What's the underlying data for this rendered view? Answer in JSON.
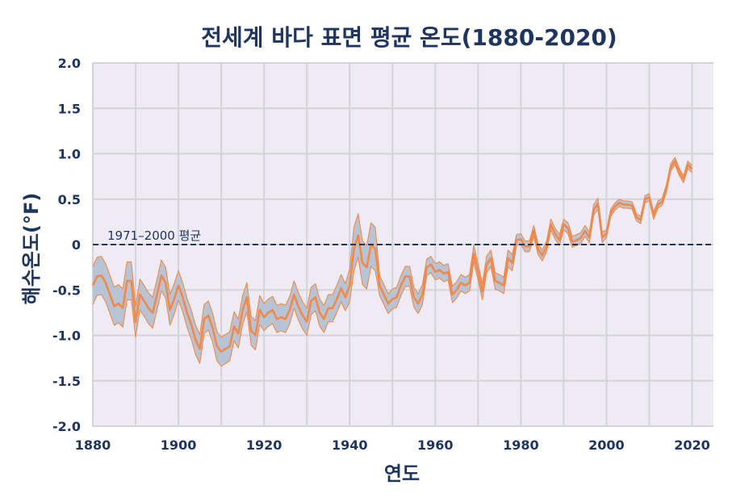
{
  "chart_data": {
    "type": "line",
    "title": "전세계 바다 표면 평균 온도(1880-2020)",
    "xlabel": "연도",
    "ylabel": "해수온도(°F)",
    "xlim": [
      1880,
      2025
    ],
    "ylim": [
      -2.0,
      2.0
    ],
    "grid": true,
    "xticks": [
      {
        "value": 1880,
        "label": "1880"
      },
      {
        "value": 1900,
        "label": "1900"
      },
      {
        "value": 1920,
        "label": "1920"
      },
      {
        "value": 1940,
        "label": "1940"
      },
      {
        "value": 1960,
        "label": "1960"
      },
      {
        "value": 1980,
        "label": "1980"
      },
      {
        "value": 2000,
        "label": "2000"
      },
      {
        "value": 2020,
        "label": "2020"
      }
    ],
    "yticks": [
      {
        "value": 2.0,
        "label": "2.0"
      },
      {
        "value": 1.5,
        "label": "1.5"
      },
      {
        "value": 1.0,
        "label": "1.0"
      },
      {
        "value": 0.5,
        "label": "0.5"
      },
      {
        "value": 0,
        "label": "0"
      },
      {
        "value": -0.5,
        "label": "-0.5"
      },
      {
        "value": -1.0,
        "label": "-1.0"
      },
      {
        "value": -1.5,
        "label": "-1.5"
      },
      {
        "value": -2.0,
        "label": "-2.0"
      }
    ],
    "reference_line": {
      "value": 0,
      "label": "1971–2000 평균"
    },
    "colors": {
      "text": "#1E3560",
      "plot_background": "#EEEBF4",
      "grid": "#D3D3D8",
      "band": "#B8C3D4",
      "line": "#EF8A4C",
      "reference_line": "#1E3560"
    },
    "x": [
      1880,
      1881,
      1882,
      1883,
      1884,
      1885,
      1886,
      1887,
      1888,
      1889,
      1890,
      1891,
      1892,
      1893,
      1894,
      1895,
      1896,
      1897,
      1898,
      1899,
      1900,
      1901,
      1902,
      1903,
      1904,
      1905,
      1906,
      1907,
      1908,
      1909,
      1910,
      1911,
      1912,
      1913,
      1914,
      1915,
      1916,
      1917,
      1918,
      1919,
      1920,
      1921,
      1922,
      1923,
      1924,
      1925,
      1926,
      1927,
      1928,
      1929,
      1930,
      1931,
      1932,
      1933,
      1934,
      1935,
      1936,
      1937,
      1938,
      1939,
      1940,
      1941,
      1942,
      1943,
      1944,
      1945,
      1946,
      1947,
      1948,
      1949,
      1950,
      1951,
      1952,
      1953,
      1954,
      1955,
      1956,
      1957,
      1958,
      1959,
      1960,
      1961,
      1962,
      1963,
      1964,
      1965,
      1966,
      1967,
      1968,
      1969,
      1970,
      1971,
      1972,
      1973,
      1974,
      1975,
      1976,
      1977,
      1978,
      1979,
      1980,
      1981,
      1982,
      1983,
      1984,
      1985,
      1986,
      1987,
      1988,
      1989,
      1990,
      1991,
      1992,
      1993,
      1994,
      1995,
      1996,
      1997,
      1998,
      1999,
      2000,
      2001,
      2002,
      2003,
      2004,
      2005,
      2006,
      2007,
      2008,
      2009,
      2010,
      2011,
      2012,
      2013,
      2014,
      2015,
      2016,
      2017,
      2018,
      2019,
      2020
    ],
    "series": [
      {
        "values": [
          -0.45,
          -0.35,
          -0.34,
          -0.42,
          -0.55,
          -0.68,
          -0.65,
          -0.7,
          -0.4,
          -0.4,
          -0.85,
          -0.55,
          -0.62,
          -0.7,
          -0.75,
          -0.55,
          -0.34,
          -0.42,
          -0.72,
          -0.6,
          -0.45,
          -0.58,
          -0.75,
          -0.88,
          -1.05,
          -1.15,
          -0.82,
          -0.78,
          -0.92,
          -1.12,
          -1.18,
          -1.15,
          -1.12,
          -0.9,
          -0.98,
          -0.72,
          -0.58,
          -0.95,
          -1.0,
          -0.72,
          -0.8,
          -0.75,
          -0.72,
          -0.82,
          -0.8,
          -0.82,
          -0.72,
          -0.55,
          -0.68,
          -0.78,
          -0.85,
          -0.62,
          -0.58,
          -0.75,
          -0.82,
          -0.7,
          -0.7,
          -0.6,
          -0.48,
          -0.58,
          -0.45,
          -0.05,
          0.1,
          -0.2,
          -0.25,
          0.0,
          -0.05,
          -0.45,
          -0.55,
          -0.65,
          -0.6,
          -0.58,
          -0.45,
          -0.35,
          -0.35,
          -0.58,
          -0.65,
          -0.55,
          -0.25,
          -0.22,
          -0.3,
          -0.28,
          -0.32,
          -0.3,
          -0.55,
          -0.5,
          -0.42,
          -0.45,
          -0.42,
          -0.1,
          -0.3,
          -0.52,
          -0.22,
          -0.15,
          -0.4,
          -0.42,
          -0.45,
          -0.15,
          -0.2,
          0.05,
          0.06,
          -0.02,
          -0.02,
          0.15,
          -0.05,
          -0.12,
          -0.02,
          0.22,
          0.12,
          0.05,
          0.22,
          0.18,
          0.03,
          0.05,
          0.07,
          0.15,
          0.08,
          0.38,
          0.45,
          0.08,
          0.12,
          0.35,
          0.42,
          0.46,
          0.44,
          0.44,
          0.43,
          0.3,
          0.27,
          0.5,
          0.52,
          0.32,
          0.44,
          0.47,
          0.62,
          0.85,
          0.92,
          0.8,
          0.72,
          0.88,
          0.83
        ],
        "upper": [
          -0.24,
          -0.14,
          -0.13,
          -0.21,
          -0.34,
          -0.47,
          -0.44,
          -0.49,
          -0.19,
          -0.19,
          -0.68,
          -0.38,
          -0.45,
          -0.53,
          -0.58,
          -0.38,
          -0.17,
          -0.25,
          -0.55,
          -0.43,
          -0.29,
          -0.42,
          -0.59,
          -0.72,
          -0.89,
          -0.99,
          -0.66,
          -0.62,
          -0.76,
          -0.96,
          -1.02,
          -0.99,
          -0.96,
          -0.74,
          -0.82,
          -0.56,
          -0.42,
          -0.79,
          -0.84,
          -0.56,
          -0.65,
          -0.6,
          -0.57,
          -0.67,
          -0.65,
          -0.67,
          -0.57,
          -0.4,
          -0.53,
          -0.63,
          -0.7,
          -0.47,
          -0.43,
          -0.6,
          -0.67,
          -0.55,
          -0.55,
          -0.45,
          -0.33,
          -0.43,
          -0.27,
          0.19,
          0.34,
          0.04,
          -0.01,
          0.24,
          0.19,
          -0.34,
          -0.44,
          -0.54,
          -0.49,
          -0.47,
          -0.34,
          -0.24,
          -0.24,
          -0.47,
          -0.54,
          -0.44,
          -0.16,
          -0.13,
          -0.21,
          -0.19,
          -0.23,
          -0.21,
          -0.46,
          -0.41,
          -0.33,
          -0.36,
          -0.33,
          -0.01,
          -0.21,
          -0.43,
          -0.13,
          -0.06,
          -0.31,
          -0.33,
          -0.36,
          -0.06,
          -0.11,
          0.11,
          0.12,
          0.04,
          0.04,
          0.21,
          0.01,
          -0.06,
          0.04,
          0.28,
          0.18,
          0.11,
          0.28,
          0.24,
          0.09,
          0.11,
          0.13,
          0.21,
          0.14,
          0.44,
          0.51,
          0.14,
          0.16,
          0.39,
          0.46,
          0.5,
          0.48,
          0.48,
          0.47,
          0.34,
          0.31,
          0.54,
          0.56,
          0.36,
          0.48,
          0.51,
          0.66,
          0.89,
          0.96,
          0.84,
          0.76,
          0.92,
          0.87
        ],
        "lower": [
          -0.66,
          -0.56,
          -0.55,
          -0.63,
          -0.76,
          -0.89,
          -0.86,
          -0.91,
          -0.61,
          -0.61,
          -1.02,
          -0.72,
          -0.79,
          -0.87,
          -0.92,
          -0.72,
          -0.51,
          -0.59,
          -0.89,
          -0.77,
          -0.61,
          -0.74,
          -0.91,
          -1.04,
          -1.21,
          -1.31,
          -0.98,
          -0.94,
          -1.08,
          -1.28,
          -1.34,
          -1.31,
          -1.28,
          -1.06,
          -1.14,
          -0.88,
          -0.74,
          -1.11,
          -1.16,
          -0.88,
          -0.95,
          -0.9,
          -0.87,
          -0.97,
          -0.95,
          -0.97,
          -0.87,
          -0.7,
          -0.83,
          -0.93,
          -1.0,
          -0.77,
          -0.73,
          -0.9,
          -0.97,
          -0.85,
          -0.85,
          -0.75,
          -0.63,
          -0.73,
          -0.63,
          -0.29,
          -0.14,
          -0.44,
          -0.49,
          -0.24,
          -0.29,
          -0.56,
          -0.66,
          -0.76,
          -0.71,
          -0.69,
          -0.56,
          -0.46,
          -0.46,
          -0.69,
          -0.76,
          -0.66,
          -0.34,
          -0.31,
          -0.39,
          -0.37,
          -0.41,
          -0.39,
          -0.64,
          -0.59,
          -0.51,
          -0.54,
          -0.51,
          -0.19,
          -0.39,
          -0.61,
          -0.31,
          -0.24,
          -0.49,
          -0.51,
          -0.54,
          -0.24,
          -0.29,
          -0.01,
          0.0,
          -0.08,
          -0.08,
          0.09,
          -0.11,
          -0.18,
          -0.08,
          0.16,
          0.06,
          -0.01,
          0.16,
          0.12,
          -0.03,
          -0.01,
          0.01,
          0.09,
          0.02,
          0.32,
          0.39,
          0.02,
          0.08,
          0.31,
          0.38,
          0.42,
          0.4,
          0.4,
          0.39,
          0.26,
          0.23,
          0.46,
          0.48,
          0.28,
          0.4,
          0.43,
          0.58,
          0.81,
          0.88,
          0.76,
          0.68,
          0.84,
          0.79
        ]
      }
    ]
  }
}
